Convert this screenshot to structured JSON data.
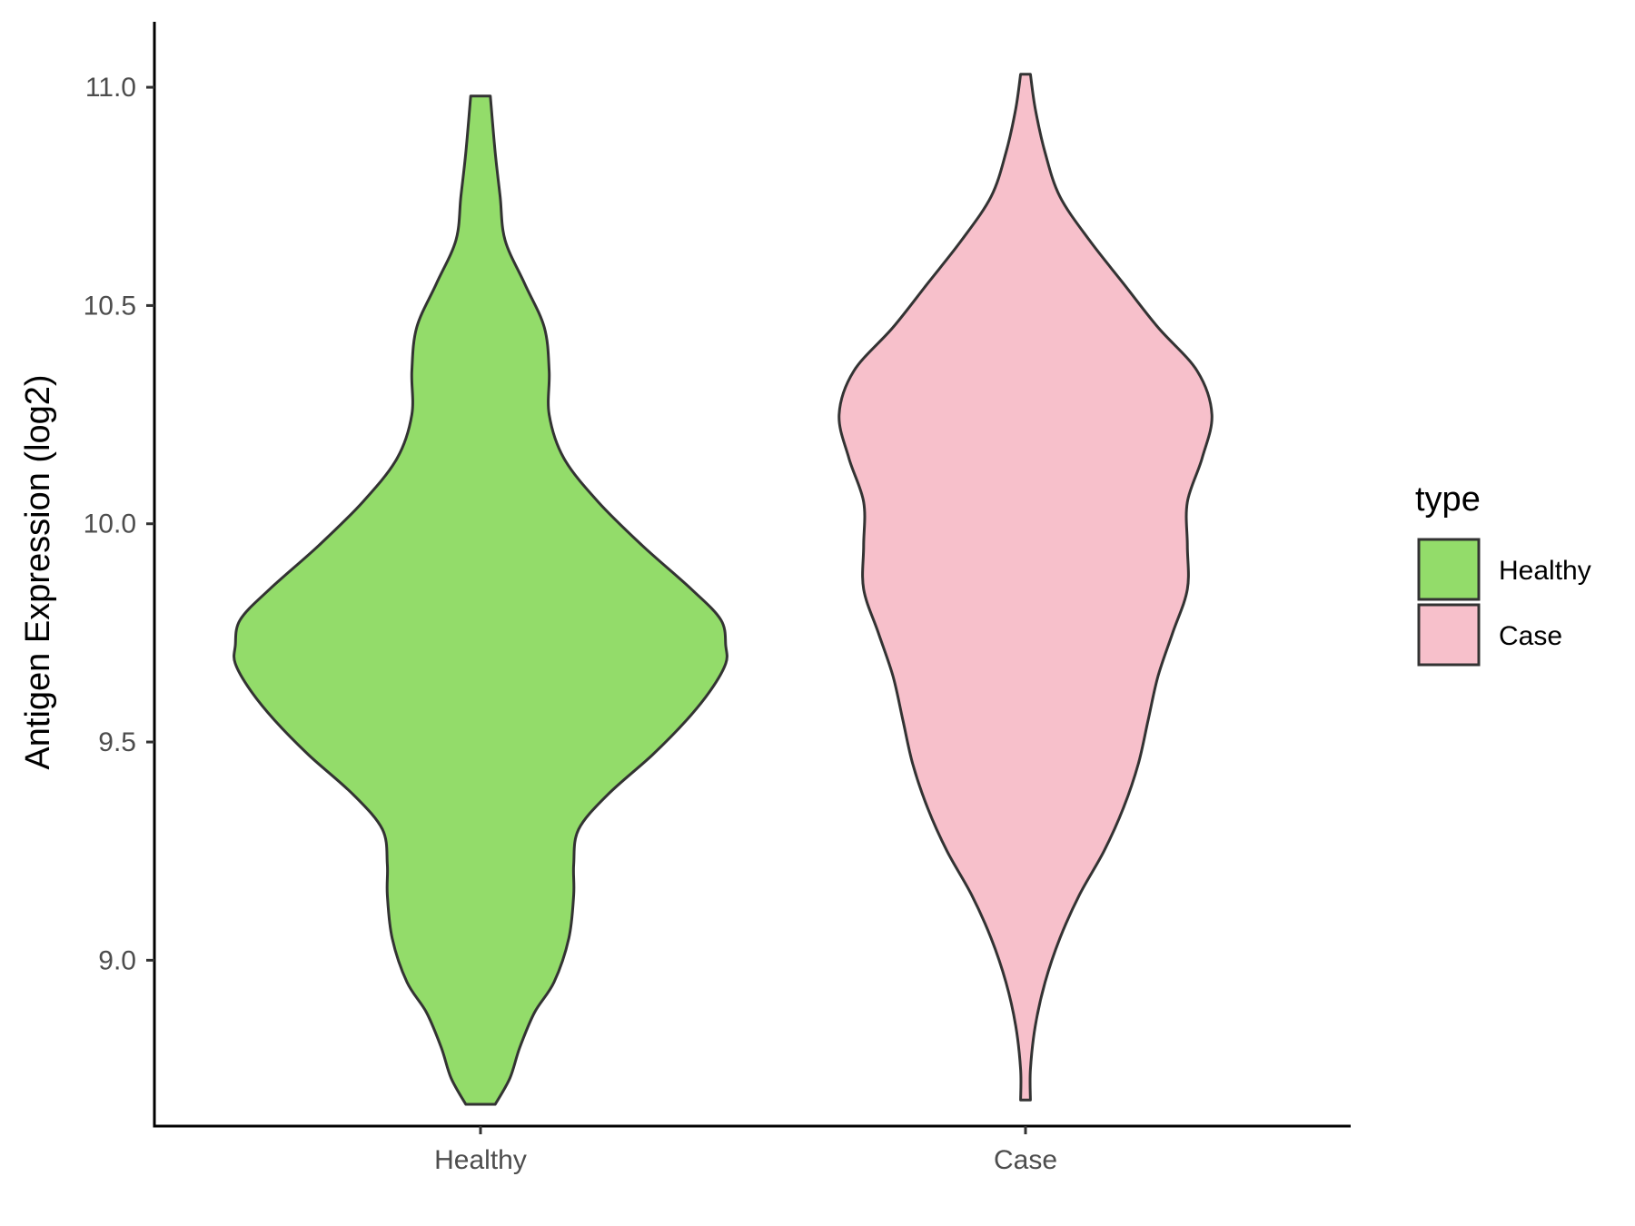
{
  "chart_data": {
    "type": "violin",
    "title": "",
    "xlabel": "",
    "ylabel": "Antigen Expression (log2)",
    "ylim": [
      8.62,
      11.15
    ],
    "yticks": [
      9.0,
      9.5,
      10.0,
      10.5,
      11.0
    ],
    "ytick_labels": [
      "9.0",
      "9.5",
      "10.0",
      "10.5",
      "11.0"
    ],
    "categories": [
      "Healthy",
      "Case"
    ],
    "legend": {
      "title": "type",
      "position": "right",
      "entries": [
        "Healthy",
        "Case"
      ]
    },
    "grid": false,
    "series": [
      {
        "name": "Healthy",
        "color": "#93DC6A",
        "range": [
          8.67,
          10.98
        ],
        "density": [
          [
            8.67,
            0.03
          ],
          [
            8.73,
            0.06
          ],
          [
            8.8,
            0.08
          ],
          [
            8.88,
            0.11
          ],
          [
            8.95,
            0.15
          ],
          [
            9.05,
            0.18
          ],
          [
            9.15,
            0.19
          ],
          [
            9.22,
            0.19
          ],
          [
            9.3,
            0.2
          ],
          [
            9.38,
            0.26
          ],
          [
            9.47,
            0.35
          ],
          [
            9.55,
            0.42
          ],
          [
            9.62,
            0.47
          ],
          [
            9.68,
            0.5
          ],
          [
            9.72,
            0.5
          ],
          [
            9.78,
            0.49
          ],
          [
            9.85,
            0.43
          ],
          [
            9.95,
            0.33
          ],
          [
            10.05,
            0.24
          ],
          [
            10.15,
            0.17
          ],
          [
            10.25,
            0.14
          ],
          [
            10.35,
            0.14
          ],
          [
            10.45,
            0.13
          ],
          [
            10.55,
            0.09
          ],
          [
            10.65,
            0.05
          ],
          [
            10.75,
            0.04
          ],
          [
            10.85,
            0.03
          ],
          [
            10.98,
            0.02
          ]
        ]
      },
      {
        "name": "Case",
        "color": "#F7C0CB",
        "range": [
          8.68,
          11.03
        ],
        "density": [
          [
            8.68,
            0.01
          ],
          [
            8.75,
            0.01
          ],
          [
            8.85,
            0.02
          ],
          [
            8.95,
            0.04
          ],
          [
            9.05,
            0.07
          ],
          [
            9.15,
            0.11
          ],
          [
            9.25,
            0.16
          ],
          [
            9.35,
            0.2
          ],
          [
            9.45,
            0.23
          ],
          [
            9.55,
            0.25
          ],
          [
            9.65,
            0.27
          ],
          [
            9.75,
            0.3
          ],
          [
            9.85,
            0.33
          ],
          [
            9.95,
            0.33
          ],
          [
            10.05,
            0.33
          ],
          [
            10.15,
            0.36
          ],
          [
            10.25,
            0.38
          ],
          [
            10.35,
            0.35
          ],
          [
            10.45,
            0.27
          ],
          [
            10.55,
            0.2
          ],
          [
            10.65,
            0.13
          ],
          [
            10.75,
            0.07
          ],
          [
            10.85,
            0.04
          ],
          [
            10.95,
            0.02
          ],
          [
            11.03,
            0.01
          ]
        ]
      }
    ]
  }
}
